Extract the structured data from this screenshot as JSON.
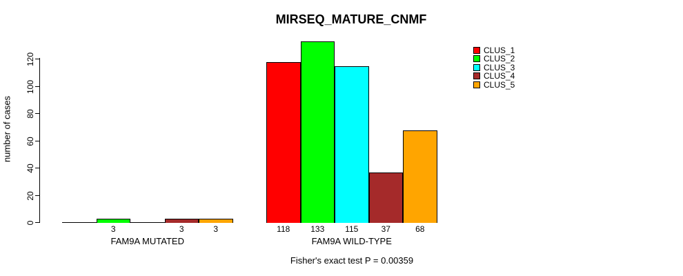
{
  "title": "MIRSEQ_MATURE_CNMF",
  "y_axis": {
    "label": "number of cases",
    "ticks": [
      0,
      20,
      40,
      60,
      80,
      100,
      120
    ]
  },
  "footer": "Fisher's exact test P = 0.00359",
  "legend": {
    "items": [
      {
        "label": "CLUS_1",
        "color": "#FF0000"
      },
      {
        "label": "CLUS_2",
        "color": "#00FF00"
      },
      {
        "label": "CLUS_3",
        "color": "#00FFFF"
      },
      {
        "label": "CLUS_4",
        "color": "#A52A2A"
      },
      {
        "label": "CLUS_5",
        "color": "#FFA500"
      }
    ]
  },
  "chart_data": {
    "type": "bar",
    "title": "MIRSEQ_MATURE_CNMF",
    "ylabel": "number of cases",
    "xlabel": "",
    "ylim": [
      0,
      133
    ],
    "grid": false,
    "legend_position": "right",
    "categories": [
      "FAM9A MUTATED",
      "FAM9A WILD-TYPE"
    ],
    "series": [
      {
        "name": "CLUS_1",
        "color": "#FF0000",
        "values": [
          0,
          118
        ]
      },
      {
        "name": "CLUS_2",
        "color": "#00FF00",
        "values": [
          3,
          133
        ]
      },
      {
        "name": "CLUS_3",
        "color": "#00FFFF",
        "values": [
          0,
          115
        ]
      },
      {
        "name": "CLUS_4",
        "color": "#A52A2A",
        "values": [
          3,
          37
        ]
      },
      {
        "name": "CLUS_5",
        "color": "#FFA500",
        "values": [
          3,
          68
        ]
      }
    ],
    "bar_labels": [
      [
        "",
        "3",
        "",
        "3",
        "3"
      ],
      [
        "118",
        "133",
        "115",
        "37",
        "68"
      ]
    ],
    "annotation": "Fisher's exact test P = 0.00359"
  }
}
